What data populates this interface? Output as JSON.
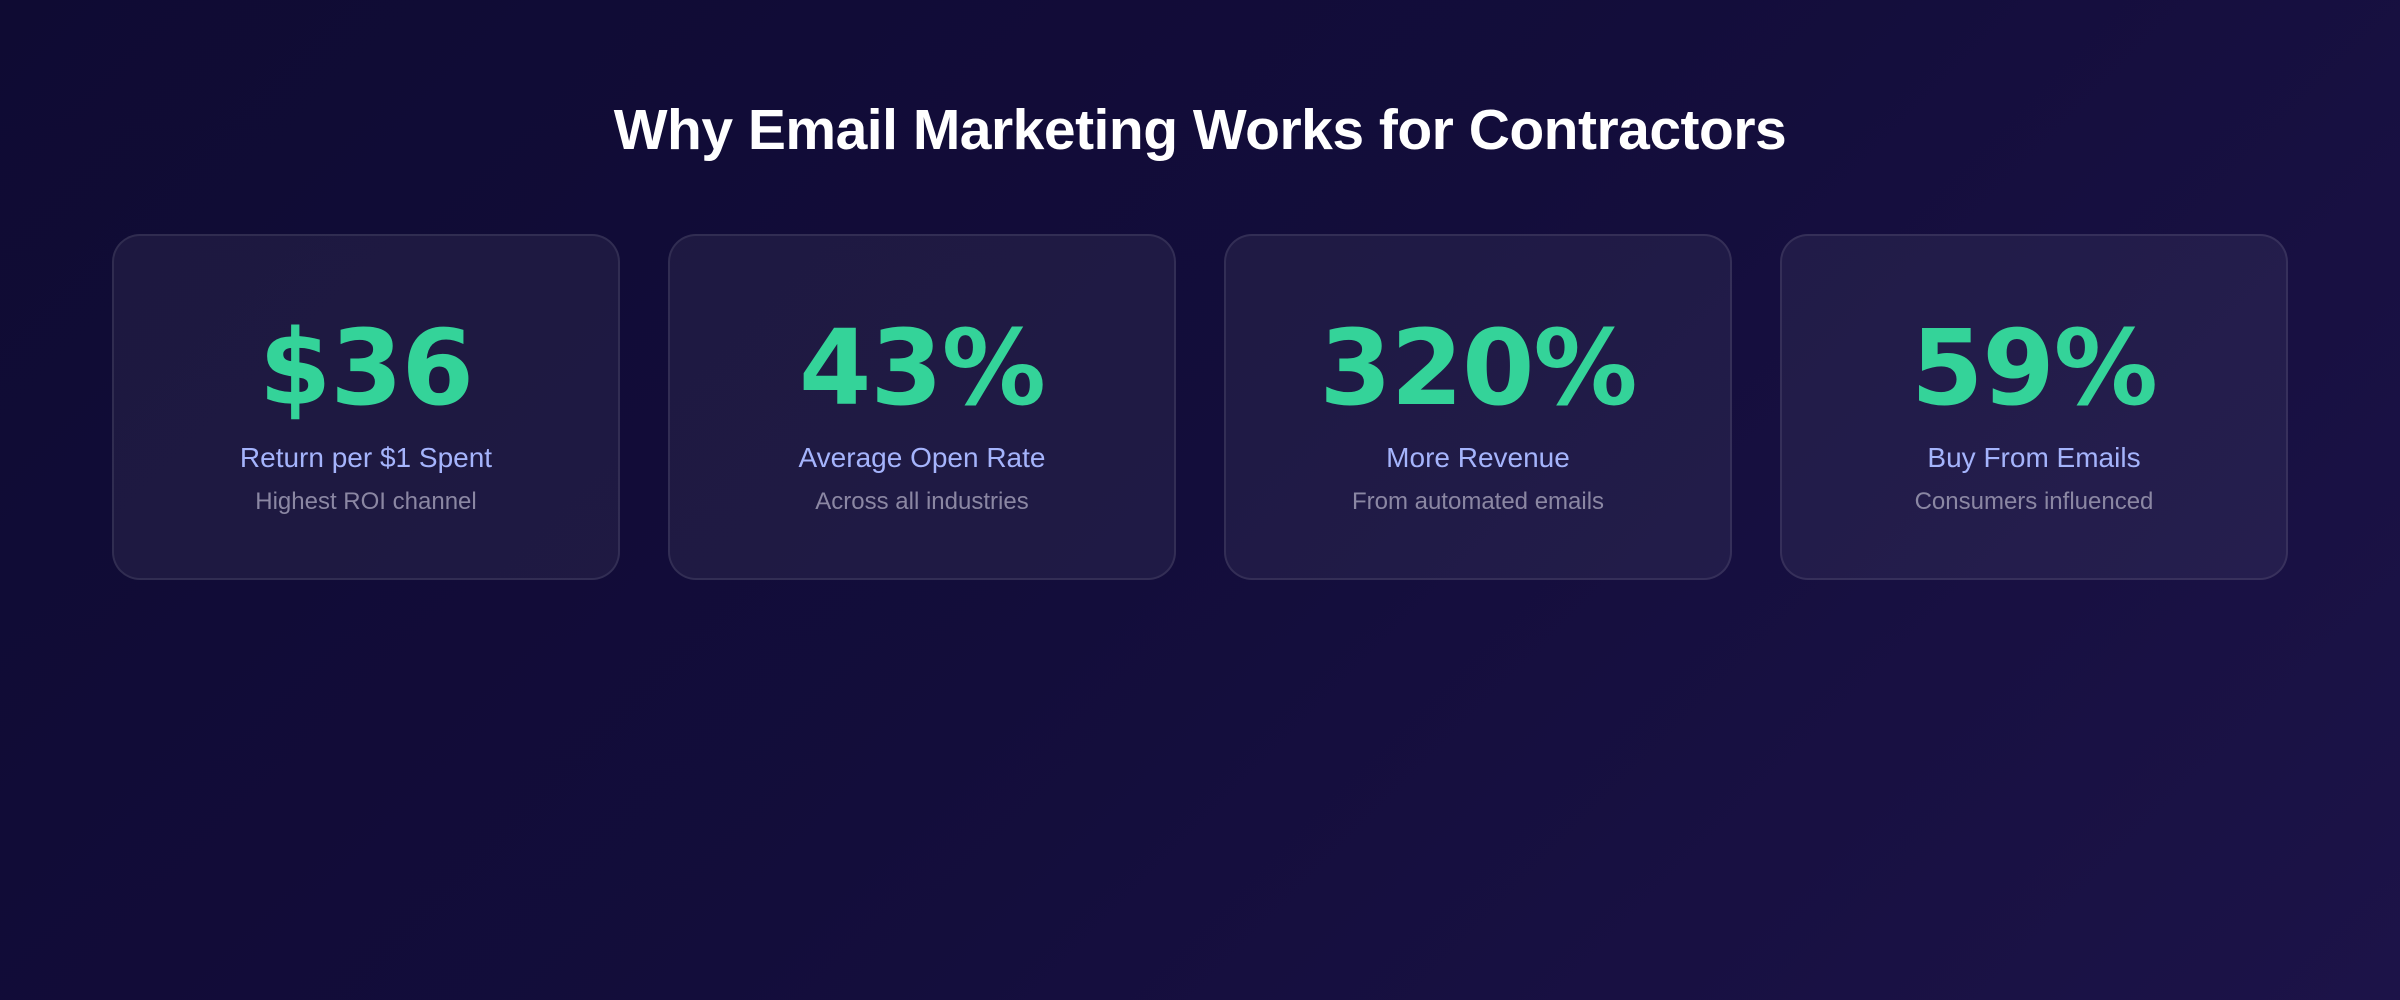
{
  "section": {
    "title": "Why Email Marketing Works for Contractors"
  },
  "stats": [
    {
      "value": "$36",
      "label": "Return per $1 Spent",
      "description": "Highest ROI channel"
    },
    {
      "value": "43%",
      "label": "Average Open Rate",
      "description": "Across all industries"
    },
    {
      "value": "320%",
      "label": "More Revenue",
      "description": "From automated emails"
    },
    {
      "value": "59%",
      "label": "Buy From Emails",
      "description": "Consumers influenced"
    }
  ],
  "colors": {
    "background": "#130d3b",
    "accent": "#34d399",
    "label": "#a5b4fc",
    "description": "#8b87a3",
    "heading": "#ffffff"
  }
}
